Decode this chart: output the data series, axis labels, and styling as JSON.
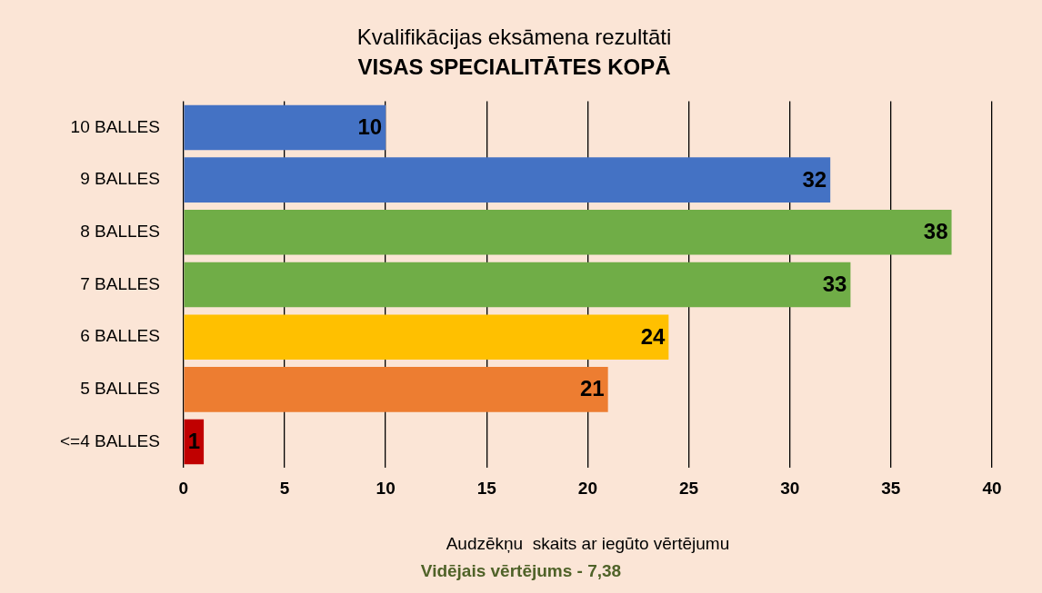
{
  "chart_data": {
    "type": "bar",
    "orientation": "horizontal",
    "title": "Kvalifikācijas eksāmena rezultāti",
    "subtitle": "VISAS SPECIALITĀTES KOPĀ",
    "xlabel": "Audzēkņu  skaits ar iegūto vērtējumu",
    "annotations": [
      "Vidējais vērtējums - 7,38"
    ],
    "categories": [
      "10 BALLES",
      "9 BALLES",
      "8 BALLES",
      "7 BALLES",
      "6 BALLES",
      "5 BALLES",
      "<=4 BALLES"
    ],
    "values": [
      10,
      32,
      38,
      33,
      24,
      21,
      1
    ],
    "colors": [
      "#4472c4",
      "#4472c4",
      "#70ad47",
      "#70ad47",
      "#ffc000",
      "#ed7d31",
      "#c00000"
    ],
    "xlim": [
      0,
      40
    ],
    "xticks": [
      0,
      5,
      10,
      15,
      20,
      25,
      30,
      35,
      40
    ],
    "grid": "x",
    "legend": false,
    "data_labels": true
  }
}
